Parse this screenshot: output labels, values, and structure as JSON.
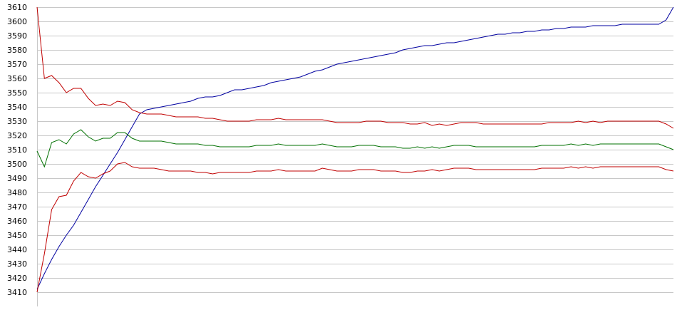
{
  "chart_data": {
    "type": "line",
    "title": "",
    "xlabel": "",
    "ylabel": "",
    "ylim": [
      3410,
      3610
    ],
    "y_ticks": [
      3410,
      3420,
      3430,
      3440,
      3450,
      3460,
      3470,
      3480,
      3490,
      3500,
      3510,
      3520,
      3530,
      3540,
      3550,
      3560,
      3570,
      3580,
      3590,
      3600,
      3610
    ],
    "grid": "horizontal",
    "legend": "none",
    "x": [
      1,
      2,
      3,
      4,
      5,
      6,
      7,
      8,
      9,
      10,
      11,
      12,
      13,
      14,
      15,
      16,
      17,
      18,
      19,
      20,
      21,
      22,
      23,
      24,
      25,
      26,
      27,
      28,
      29,
      30,
      31,
      32,
      33,
      34,
      35,
      36,
      37,
      38,
      39,
      40,
      41,
      42,
      43,
      44,
      45,
      46,
      47,
      48,
      49,
      50,
      51,
      52,
      53,
      54,
      55,
      56,
      57,
      58,
      59,
      60,
      61,
      62,
      63,
      64,
      65,
      66,
      67,
      68,
      69,
      70,
      71,
      72,
      73,
      74,
      75,
      76,
      77,
      78,
      79,
      80,
      81,
      82,
      83,
      84,
      85,
      86,
      87,
      88
    ],
    "series": [
      {
        "color": "#0000a0",
        "values": [
          3412,
          3423,
          3433,
          3442,
          3450,
          3457,
          3466,
          3475,
          3484,
          3492,
          3500,
          3508,
          3517,
          3526,
          3535,
          3538,
          3539,
          3540,
          3541,
          3542,
          3543,
          3544,
          3546,
          3547,
          3547,
          3548,
          3550,
          3552,
          3552,
          3553,
          3554,
          3555,
          3557,
          3558,
          3559,
          3560,
          3561,
          3563,
          3565,
          3566,
          3568,
          3570,
          3571,
          3572,
          3573,
          3574,
          3575,
          3576,
          3577,
          3578,
          3580,
          3581,
          3582,
          3583,
          3583,
          3584,
          3585,
          3585,
          3586,
          3587,
          3588,
          3589,
          3590,
          3591,
          3591,
          3592,
          3592,
          3593,
          3593,
          3594,
          3594,
          3595,
          3595,
          3596,
          3596,
          3596,
          3597,
          3597,
          3597,
          3597,
          3598,
          3598,
          3598,
          3598,
          3598,
          3598,
          3601,
          3610
        ]
      },
      {
        "color": "#c00000",
        "values": [
          3610,
          3560,
          3562,
          3557,
          3550,
          3553,
          3553,
          3546,
          3541,
          3542,
          3541,
          3544,
          3543,
          3538,
          3536,
          3535,
          3535,
          3535,
          3534,
          3533,
          3533,
          3533,
          3533,
          3532,
          3532,
          3531,
          3530,
          3530,
          3530,
          3530,
          3531,
          3531,
          3531,
          3532,
          3531,
          3531,
          3531,
          3531,
          3531,
          3531,
          3530,
          3529,
          3529,
          3529,
          3529,
          3530,
          3530,
          3530,
          3529,
          3529,
          3529,
          3528,
          3528,
          3529,
          3527,
          3528,
          3527,
          3528,
          3529,
          3529,
          3529,
          3528,
          3528,
          3528,
          3528,
          3528,
          3528,
          3528,
          3528,
          3528,
          3529,
          3529,
          3529,
          3529,
          3530,
          3529,
          3530,
          3529,
          3530,
          3530,
          3530,
          3530,
          3530,
          3530,
          3530,
          3530,
          3528,
          3525
        ]
      },
      {
        "color": "#007000",
        "values": [
          3509,
          3498,
          3515,
          3517,
          3514,
          3521,
          3524,
          3519,
          3516,
          3518,
          3518,
          3522,
          3522,
          3518,
          3516,
          3516,
          3516,
          3516,
          3515,
          3514,
          3514,
          3514,
          3514,
          3513,
          3513,
          3512,
          3512,
          3512,
          3512,
          3512,
          3513,
          3513,
          3513,
          3514,
          3513,
          3513,
          3513,
          3513,
          3513,
          3514,
          3513,
          3512,
          3512,
          3512,
          3513,
          3513,
          3513,
          3512,
          3512,
          3512,
          3511,
          3511,
          3512,
          3511,
          3512,
          3511,
          3512,
          3513,
          3513,
          3513,
          3512,
          3512,
          3512,
          3512,
          3512,
          3512,
          3512,
          3512,
          3512,
          3513,
          3513,
          3513,
          3513,
          3514,
          3513,
          3514,
          3513,
          3514,
          3514,
          3514,
          3514,
          3514,
          3514,
          3514,
          3514,
          3514,
          3512,
          3510
        ]
      },
      {
        "color": "#c00000",
        "values": [
          3410,
          3437,
          3468,
          3477,
          3478,
          3488,
          3494,
          3491,
          3490,
          3493,
          3495,
          3500,
          3501,
          3498,
          3497,
          3497,
          3497,
          3496,
          3495,
          3495,
          3495,
          3495,
          3494,
          3494,
          3493,
          3494,
          3494,
          3494,
          3494,
          3494,
          3495,
          3495,
          3495,
          3496,
          3495,
          3495,
          3495,
          3495,
          3495,
          3497,
          3496,
          3495,
          3495,
          3495,
          3496,
          3496,
          3496,
          3495,
          3495,
          3495,
          3494,
          3494,
          3495,
          3495,
          3496,
          3495,
          3496,
          3497,
          3497,
          3497,
          3496,
          3496,
          3496,
          3496,
          3496,
          3496,
          3496,
          3496,
          3496,
          3497,
          3497,
          3497,
          3497,
          3498,
          3497,
          3498,
          3497,
          3498,
          3498,
          3498,
          3498,
          3498,
          3498,
          3498,
          3498,
          3498,
          3496,
          3495
        ]
      }
    ]
  }
}
